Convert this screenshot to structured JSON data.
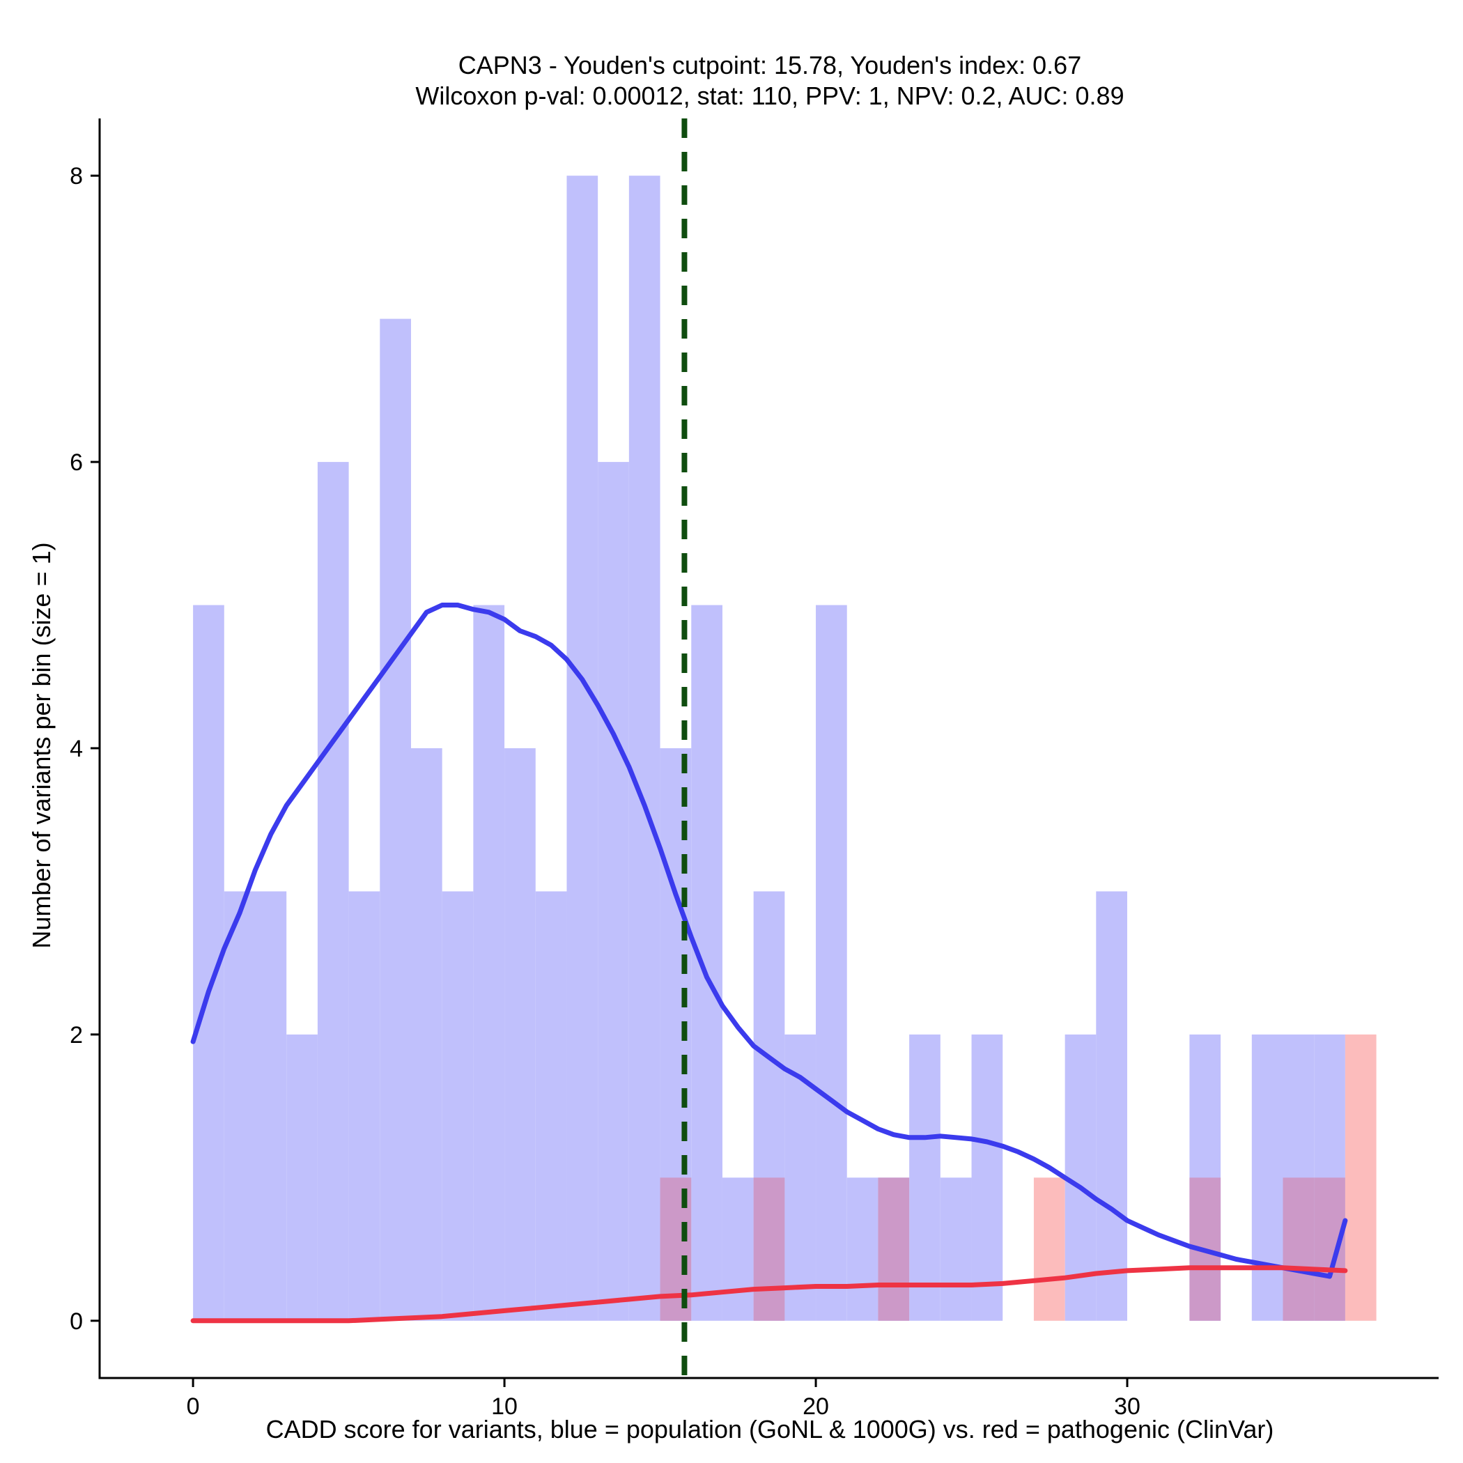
{
  "chart_data": {
    "type": "bar",
    "title": "CAPN3 - Youden's cutpoint: 15.78, Youden's index: 0.67",
    "subtitle": "Wilcoxon p-val: 0.00012, stat: 110, PPV: 1, NPV: 0.2, AUC: 0.89",
    "xlabel": "CADD score for variants, blue = population (GoNL & 1000G) vs. red = pathogenic (ClinVar)",
    "ylabel": "Number of variants per bin (size = 1)",
    "xlim": [
      -3,
      40
    ],
    "ylim": [
      -0.4,
      8.4
    ],
    "xticks": [
      "0",
      "10",
      "20",
      "30"
    ],
    "xtick_values": [
      0,
      10,
      20,
      30
    ],
    "yticks": [
      "0",
      "2",
      "4",
      "6",
      "8"
    ],
    "ytick_values": [
      0,
      2,
      4,
      6,
      8
    ],
    "bin_size": 1,
    "cutpoint": 15.78,
    "colors": {
      "population_bar": "#c0c0fc",
      "pathogenic_bar": "#fcbcbc",
      "overlap_bar": "#cc99c8",
      "population_curve": "#3b3bed",
      "pathogenic_curve": "#ee3344",
      "cutpoint_line": "#0f4d0f"
    },
    "series": [
      {
        "name": "population (GoNL & 1000G)",
        "bin_starts": [
          0,
          1,
          2,
          3,
          4,
          5,
          6,
          7,
          8,
          9,
          10,
          11,
          12,
          13,
          14,
          15,
          16,
          17,
          18,
          19,
          20,
          21,
          22,
          23,
          24,
          25,
          26,
          27,
          28,
          29,
          30,
          31,
          32,
          33,
          34,
          35,
          36
        ],
        "values": [
          5,
          3,
          3,
          2,
          6,
          3,
          7,
          4,
          3,
          5,
          4,
          3,
          8,
          6,
          8,
          4,
          5,
          1,
          3,
          2,
          5,
          1,
          1,
          2,
          1,
          2,
          0,
          0,
          2,
          3,
          0,
          0,
          2,
          0,
          2,
          2,
          2
        ]
      },
      {
        "name": "pathogenic (ClinVar)",
        "bin_starts": [
          0,
          1,
          2,
          3,
          4,
          5,
          6,
          7,
          8,
          9,
          10,
          11,
          12,
          13,
          14,
          15,
          16,
          17,
          18,
          19,
          20,
          21,
          22,
          23,
          24,
          25,
          26,
          27,
          28,
          29,
          30,
          31,
          32,
          33,
          34,
          35,
          36,
          37
        ],
        "values": [
          0,
          0,
          0,
          0,
          0,
          0,
          0,
          0,
          0,
          0,
          0,
          0,
          0,
          0,
          0,
          1,
          0,
          0,
          1,
          0,
          0,
          0,
          1,
          0,
          0,
          0,
          0,
          1,
          0,
          0,
          0,
          0,
          1,
          0,
          0,
          1,
          1,
          2
        ]
      }
    ],
    "curves": [
      {
        "name": "population density",
        "x": [
          0,
          0.5,
          1,
          1.5,
          2,
          2.5,
          3,
          3.5,
          4,
          4.5,
          5,
          5.5,
          6,
          6.5,
          7,
          7.5,
          8,
          8.5,
          9,
          9.5,
          10,
          10.5,
          11,
          11.5,
          12,
          12.5,
          13,
          13.5,
          14,
          14.5,
          15,
          15.5,
          16,
          16.5,
          17,
          17.5,
          18,
          18.5,
          19,
          19.5,
          20,
          20.5,
          21,
          21.5,
          22,
          22.5,
          23,
          23.5,
          24,
          24.5,
          25,
          25.5,
          26,
          26.5,
          27,
          27.5,
          28,
          28.5,
          29,
          29.5,
          30,
          30.5,
          31,
          31.5,
          32,
          32.5,
          33,
          33.5,
          34,
          34.5,
          35,
          35.5,
          36,
          36.5,
          37
        ],
        "y": [
          1.95,
          2.3,
          2.6,
          2.85,
          3.15,
          3.4,
          3.6,
          3.75,
          3.9,
          4.05,
          4.2,
          4.35,
          4.5,
          4.65,
          4.8,
          4.95,
          5.0,
          5.0,
          4.97,
          4.95,
          4.9,
          4.82,
          4.78,
          4.72,
          4.62,
          4.48,
          4.3,
          4.1,
          3.87,
          3.6,
          3.3,
          2.98,
          2.68,
          2.4,
          2.2,
          2.05,
          1.92,
          1.84,
          1.76,
          1.7,
          1.62,
          1.54,
          1.46,
          1.4,
          1.34,
          1.3,
          1.28,
          1.28,
          1.29,
          1.28,
          1.27,
          1.25,
          1.22,
          1.18,
          1.13,
          1.07,
          1.0,
          0.93,
          0.85,
          0.78,
          0.7,
          0.65,
          0.6,
          0.56,
          0.52,
          0.49,
          0.46,
          0.43,
          0.41,
          0.39,
          0.37,
          0.35,
          0.33,
          0.31,
          0.7
        ]
      },
      {
        "name": "pathogenic density",
        "x": [
          0,
          1,
          2,
          3,
          4,
          5,
          6,
          7,
          8,
          9,
          10,
          11,
          12,
          13,
          14,
          15,
          16,
          17,
          18,
          19,
          20,
          21,
          22,
          23,
          24,
          25,
          26,
          27,
          28,
          29,
          30,
          31,
          32,
          33,
          34,
          35,
          36,
          37
        ],
        "y": [
          0,
          0,
          0,
          0,
          0,
          0,
          0.01,
          0.02,
          0.03,
          0.05,
          0.07,
          0.09,
          0.11,
          0.13,
          0.15,
          0.17,
          0.18,
          0.2,
          0.22,
          0.23,
          0.24,
          0.24,
          0.25,
          0.25,
          0.25,
          0.25,
          0.26,
          0.28,
          0.3,
          0.33,
          0.35,
          0.36,
          0.37,
          0.37,
          0.37,
          0.37,
          0.36,
          0.35
        ]
      }
    ]
  }
}
